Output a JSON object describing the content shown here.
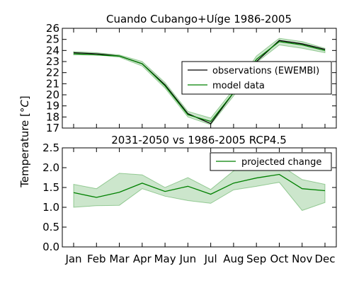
{
  "colors": {
    "observations": "#000000",
    "model": "#008000",
    "band": "#008000"
  },
  "shared": {
    "ylabel_text": "Temperature [",
    "ylabel_unit": "°C",
    "ylabel_end": "]"
  },
  "chart_data": [
    {
      "type": "line",
      "title": "Cuando Cubango+Uíge 1986-2005",
      "categories": [
        "Jan",
        "Feb",
        "Mar",
        "Apr",
        "May",
        "Jun",
        "Jul",
        "Aug",
        "Sep",
        "Oct",
        "Nov",
        "Dec"
      ],
      "ylim": [
        17,
        26
      ],
      "yticks": [
        "17",
        "18",
        "19",
        "20",
        "21",
        "22",
        "23",
        "24",
        "25",
        "26"
      ],
      "ytick_values": [
        17,
        18,
        19,
        20,
        21,
        22,
        23,
        24,
        25,
        26
      ],
      "legend": {
        "placement": "center-right",
        "entries": [
          "observations (EWEMBI)",
          "model data"
        ]
      },
      "series": [
        {
          "name": "observations (EWEMBI)",
          "values": [
            23.8,
            23.7,
            23.5,
            22.8,
            20.9,
            18.3,
            17.4,
            20.2,
            23.0,
            24.9,
            24.6,
            24.1
          ]
        },
        {
          "name": "model data",
          "values": [
            23.7,
            23.6,
            23.5,
            22.8,
            20.8,
            18.2,
            17.6,
            20.2,
            23.2,
            24.8,
            24.5,
            24.0
          ],
          "band_low": [
            23.6,
            23.6,
            23.4,
            22.6,
            20.6,
            18.0,
            17.3,
            19.9,
            22.9,
            24.5,
            24.2,
            23.8
          ],
          "band_high": [
            23.9,
            23.8,
            23.6,
            23.0,
            21.1,
            18.5,
            17.9,
            20.5,
            23.5,
            25.1,
            24.8,
            24.2
          ]
        }
      ]
    },
    {
      "type": "line",
      "title": "2031-2050 vs 1986-2005 RCP4.5",
      "categories": [
        "Jan",
        "Feb",
        "Mar",
        "Apr",
        "May",
        "Jun",
        "Jul",
        "Aug",
        "Sep",
        "Oct",
        "Nov",
        "Dec"
      ],
      "ylim": [
        0.0,
        2.5
      ],
      "yticks": [
        "0.0",
        "0.5",
        "1.0",
        "1.5",
        "2.0",
        "2.5"
      ],
      "ytick_values": [
        0.0,
        0.5,
        1.0,
        1.5,
        2.0,
        2.5
      ],
      "legend": {
        "placement": "top-right",
        "entries": [
          "projected change"
        ]
      },
      "series": [
        {
          "name": "projected change",
          "values": [
            1.37,
            1.25,
            1.38,
            1.61,
            1.4,
            1.53,
            1.33,
            1.61,
            1.74,
            1.83,
            1.47,
            1.42
          ],
          "band_low": [
            1.0,
            1.04,
            1.05,
            1.47,
            1.28,
            1.17,
            1.1,
            1.44,
            1.53,
            1.63,
            0.92,
            1.12
          ],
          "band_high": [
            1.58,
            1.47,
            1.86,
            1.82,
            1.5,
            1.75,
            1.45,
            1.92,
            2.06,
            2.08,
            1.7,
            1.58
          ]
        }
      ]
    }
  ]
}
